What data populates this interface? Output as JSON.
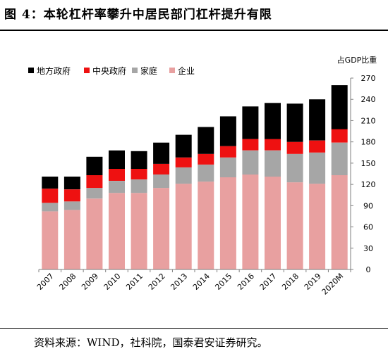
{
  "figure": {
    "title": "图 4：本轮杠杆率攀升中居民部门杠杆提升有限",
    "source": "资料来源：WIND，社科院，国泰君安证券研究。"
  },
  "chart_data": {
    "type": "bar",
    "stacked": true,
    "unit_label": "占GDP比重",
    "categories": [
      "2007",
      "2008",
      "2009",
      "2010",
      "2011",
      "2012",
      "2013",
      "2014",
      "2015",
      "2016",
      "2017",
      "2018",
      "2019",
      "2020M"
    ],
    "series": [
      {
        "name": "企业",
        "color": "#e8a0a0",
        "values": [
          82,
          84,
          100,
          108,
          108,
          115,
          121,
          124,
          130,
          134,
          131,
          123,
          121,
          133
        ]
      },
      {
        "name": "家庭",
        "color": "#a6a6a6",
        "values": [
          12,
          12,
          15,
          17,
          19,
          19,
          23,
          24,
          28,
          34,
          37,
          40,
          44,
          46
        ]
      },
      {
        "name": "中央政府",
        "color": "#ee1111",
        "values": [
          20,
          17,
          18,
          17,
          15,
          15,
          14,
          15,
          16,
          16,
          16,
          17,
          17,
          19
        ]
      },
      {
        "name": "地方政府",
        "color": "#000000",
        "values": [
          17,
          18,
          26,
          26,
          25,
          30,
          32,
          38,
          42,
          46,
          51,
          54,
          58,
          62
        ]
      }
    ],
    "legend_order": [
      "地方政府",
      "中央政府",
      "家庭",
      "企业"
    ],
    "legend_position": "top-left",
    "y_axis": {
      "side": "right",
      "ylim": [
        0,
        270
      ],
      "ticks": [
        0,
        30,
        60,
        90,
        120,
        150,
        180,
        210,
        240,
        270
      ]
    },
    "grid": false
  }
}
